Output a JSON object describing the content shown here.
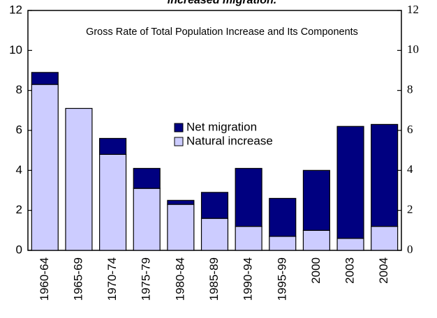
{
  "chart_data": {
    "type": "stacked_bar",
    "title": "increased migration.",
    "annotation": "Gross Rate of Total Population Increase and Its Components",
    "categories": [
      "1960-64",
      "1965-69",
      "1970-74",
      "1975-79",
      "1980-84",
      "1985-89",
      "1990-94",
      "1995-99",
      "2000",
      "2003",
      "2004"
    ],
    "series": [
      {
        "name": "Natural increase",
        "color": "#ccccff",
        "values": [
          8.3,
          7.1,
          4.8,
          3.1,
          2.3,
          1.6,
          1.2,
          0.7,
          1.0,
          0.6,
          1.2
        ]
      },
      {
        "name": "Net migration",
        "color": "#000080",
        "values": [
          0.6,
          0,
          0.8,
          1.0,
          0.2,
          1.3,
          2.9,
          1.9,
          3.0,
          5.6,
          5.1
        ]
      }
    ],
    "ylim": [
      0,
      12
    ],
    "yticks": [
      0,
      2,
      4,
      6,
      8,
      10,
      12
    ],
    "y2lim": [
      0,
      12
    ],
    "y2ticks": [
      0,
      2,
      4,
      6,
      8,
      10,
      12
    ],
    "legend": "center"
  }
}
